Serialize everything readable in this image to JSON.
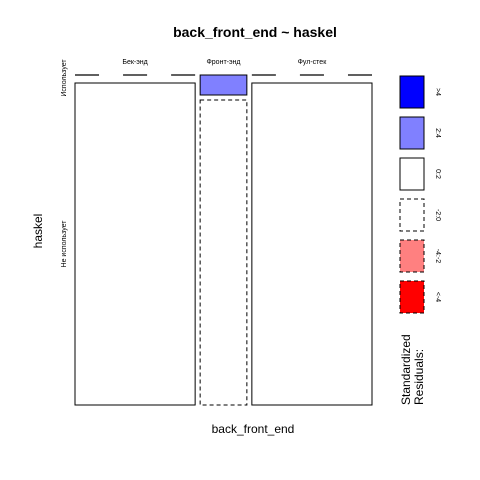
{
  "chart_data": {
    "type": "mosaic",
    "title": "back_front_end ~ haskel",
    "xlabel": "back_front_end",
    "ylabel": "haskel",
    "x_categories": [
      "Бек-энд",
      "Фронт-энд",
      "Фул-стек"
    ],
    "y_categories": [
      "Использует",
      "Не использует"
    ],
    "column_shares": [
      0.45,
      0.175,
      0.45
    ],
    "cells": [
      {
        "x": "Бек-энд",
        "y": "Использует",
        "share": 0.0,
        "residual_class": "0:2"
      },
      {
        "x": "Бек-энд",
        "y": "Не использует",
        "share": 1.0,
        "residual_class": "0:2"
      },
      {
        "x": "Фронт-энд",
        "y": "Использует",
        "share": 0.06,
        "residual_class": "2:4"
      },
      {
        "x": "Фронт-энд",
        "y": "Не использует",
        "share": 0.94,
        "residual_class": "-2:0"
      },
      {
        "x": "Фул-стек",
        "y": "Использует",
        "share": 0.0,
        "residual_class": "0:2"
      },
      {
        "x": "Фул-стек",
        "y": "Не использует",
        "share": 1.0,
        "residual_class": "0:2"
      }
    ],
    "legend": {
      "title_lines": [
        "Standardized",
        "Residuals:"
      ],
      "placement": "right",
      "items": [
        {
          "label": ">4",
          "fill": "#0000ff",
          "dashed": false
        },
        {
          "label": "2:4",
          "fill": "#8080ff",
          "dashed": false
        },
        {
          "label": "0:2",
          "fill": "#ffffff",
          "dashed": false
        },
        {
          "label": "-2:0",
          "fill": "#ffffff",
          "dashed": true
        },
        {
          "label": "-4:-2",
          "fill": "#ff8080",
          "dashed": true
        },
        {
          "label": "<-4",
          "fill": "#ff0000",
          "dashed": true
        }
      ]
    }
  }
}
